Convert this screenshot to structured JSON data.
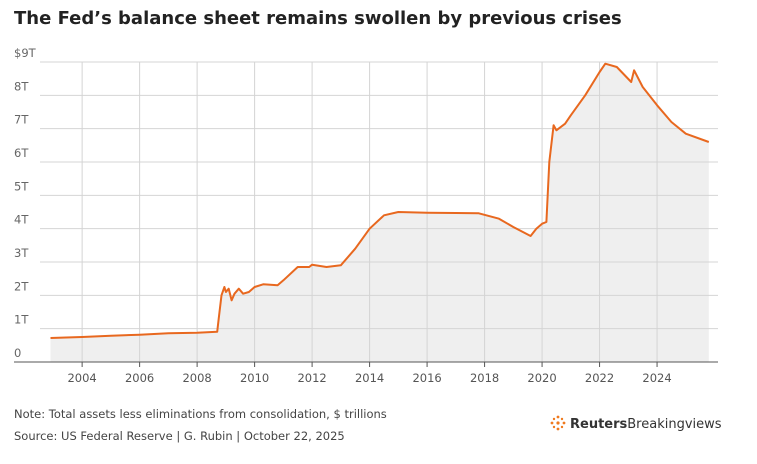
{
  "chart_data": {
    "type": "area-line",
    "title": "The Fed’s balance sheet remains swollen by previous crises",
    "note": "Note: Total assets less eliminations from consolidation, $ trillions",
    "source": "Source: US Federal Reserve | G. Rubin | October 22, 2025",
    "brand": {
      "bold": "Reuters",
      "light": "Breakingviews"
    },
    "x": [
      2002.9,
      2004,
      2005,
      2006,
      2007,
      2008,
      2008.7,
      2008.75,
      2008.85,
      2008.95,
      2009.0,
      2009.1,
      2009.2,
      2009.3,
      2009.45,
      2009.6,
      2009.8,
      2010.0,
      2010.3,
      2010.8,
      2011.0,
      2011.5,
      2011.9,
      2012.0,
      2012.5,
      2013.0,
      2013.5,
      2014.0,
      2014.5,
      2015.0,
      2016.0,
      2017.0,
      2017.8,
      2018.5,
      2019.0,
      2019.6,
      2019.8,
      2020.0,
      2020.15,
      2020.25,
      2020.4,
      2020.5,
      2020.8,
      2021.0,
      2021.5,
      2022.0,
      2022.2,
      2022.6,
      2023.1,
      2023.2,
      2023.5,
      2024.0,
      2024.5,
      2025.0,
      2025.8
    ],
    "values": [
      0.72,
      0.75,
      0.79,
      0.82,
      0.86,
      0.88,
      0.91,
      1.3,
      2.0,
      2.25,
      2.1,
      2.2,
      1.85,
      2.05,
      2.2,
      2.05,
      2.1,
      2.25,
      2.33,
      2.3,
      2.45,
      2.85,
      2.85,
      2.92,
      2.85,
      2.9,
      3.4,
      4.0,
      4.4,
      4.5,
      4.48,
      4.47,
      4.46,
      4.3,
      4.05,
      3.78,
      4.0,
      4.15,
      4.2,
      6.0,
      7.1,
      6.95,
      7.15,
      7.4,
      8.0,
      8.7,
      8.95,
      8.85,
      8.4,
      8.75,
      8.25,
      7.7,
      7.2,
      6.85,
      6.6
    ],
    "color": "#e8681f",
    "area_color": "#efefef",
    "xlim": [
      2001.63,
      2026.12
    ],
    "xticks": [
      2004,
      2006,
      2008,
      2010,
      2012,
      2014,
      2016,
      2018,
      2020,
      2022,
      2024
    ],
    "ylim": [
      0,
      9
    ],
    "yticks": [
      0,
      {
        "value": 1,
        "label": "1T"
      },
      {
        "value": 2,
        "label": "2T"
      },
      {
        "value": 3,
        "label": "3T"
      },
      {
        "value": 4,
        "label": "4T"
      },
      {
        "value": 5,
        "label": "5T"
      },
      {
        "value": 6,
        "label": "6T"
      },
      {
        "value": 7,
        "label": "7T"
      },
      {
        "value": 8,
        "label": "8T"
      },
      {
        "value": 9,
        "label": "$9T"
      }
    ],
    "grid": true
  }
}
